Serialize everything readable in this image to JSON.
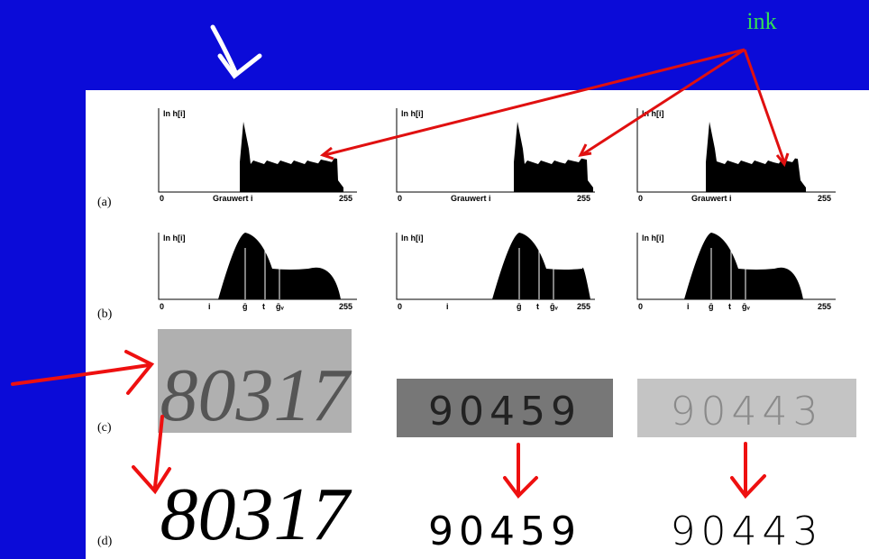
{
  "annotation": "ink",
  "row_labels": [
    "(a)",
    "(b)",
    "(c)",
    "(d)"
  ],
  "raw_histograms": [
    {
      "y_label": "ln h[i]",
      "x_label": "Grauwert i",
      "x_min": "0",
      "x_max": "255"
    },
    {
      "y_label": "ln h[i]",
      "x_label": "Grauwert i",
      "x_min": "0",
      "x_max": "255"
    },
    {
      "y_label": "ln h[i]",
      "x_label": "Grauwert i",
      "x_min": "0",
      "x_max": "255"
    }
  ],
  "smoothed_histograms": [
    {
      "y_label": "ln h[i]",
      "ticks": [
        "0",
        "i",
        "ḡ",
        "t",
        "ḡᵥ",
        "255"
      ]
    },
    {
      "y_label": "ln h[i]",
      "ticks": [
        "0",
        "i",
        "ḡ",
        "t",
        "ḡᵥ",
        "255"
      ]
    },
    {
      "y_label": "ln h[i]",
      "ticks": [
        "0",
        "i",
        "ḡ",
        "t",
        "ḡᵥ",
        "255"
      ]
    }
  ],
  "gray_images": [
    "80317",
    "90459",
    "90443"
  ],
  "binarized_images": [
    "80317",
    "90459",
    "90443"
  ]
}
